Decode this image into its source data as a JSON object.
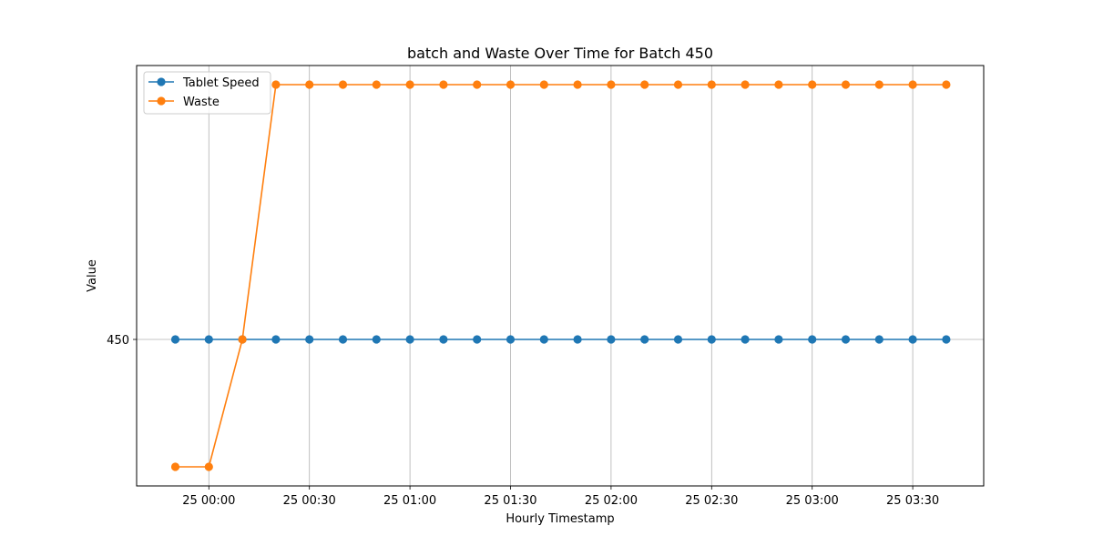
{
  "chart_data": {
    "type": "line",
    "title": "batch and Waste Over Time for Batch 450",
    "xlabel": "Hourly Timestamp",
    "ylabel": "Value",
    "x_tick_labels": [
      "25 00:00",
      "25 00:30",
      "25 01:00",
      "25 01:30",
      "25 02:00",
      "25 02:30",
      "25 03:00",
      "25 03:30"
    ],
    "y_tick_labels": [
      "450"
    ],
    "x": [
      "23:50",
      "00:00",
      "00:10",
      "00:20",
      "00:30",
      "00:40",
      "00:50",
      "01:00",
      "01:10",
      "01:20",
      "01:30",
      "01:40",
      "01:50",
      "02:00",
      "02:10",
      "02:20",
      "02:30",
      "02:40",
      "02:50",
      "03:00",
      "03:10",
      "03:20",
      "03:30",
      "03:40"
    ],
    "series": [
      {
        "name": "Tablet Speed",
        "color": "#1f77b4",
        "values": [
          450,
          450,
          450,
          450,
          450,
          450,
          450,
          450,
          450,
          450,
          450,
          450,
          450,
          450,
          450,
          450,
          450,
          450,
          450,
          450,
          450,
          450,
          450,
          450
        ]
      },
      {
        "name": "Waste",
        "color": "#ff7f0e",
        "values": [
          449.5,
          449.5,
          450,
          451,
          451,
          451,
          451,
          451,
          451,
          451,
          451,
          451,
          451,
          451,
          451,
          451,
          451,
          451,
          451,
          451,
          451,
          451,
          451,
          451
        ]
      }
    ],
    "grid": "vertical at x ticks, horizontal at y ticks",
    "legend": "top-left"
  }
}
